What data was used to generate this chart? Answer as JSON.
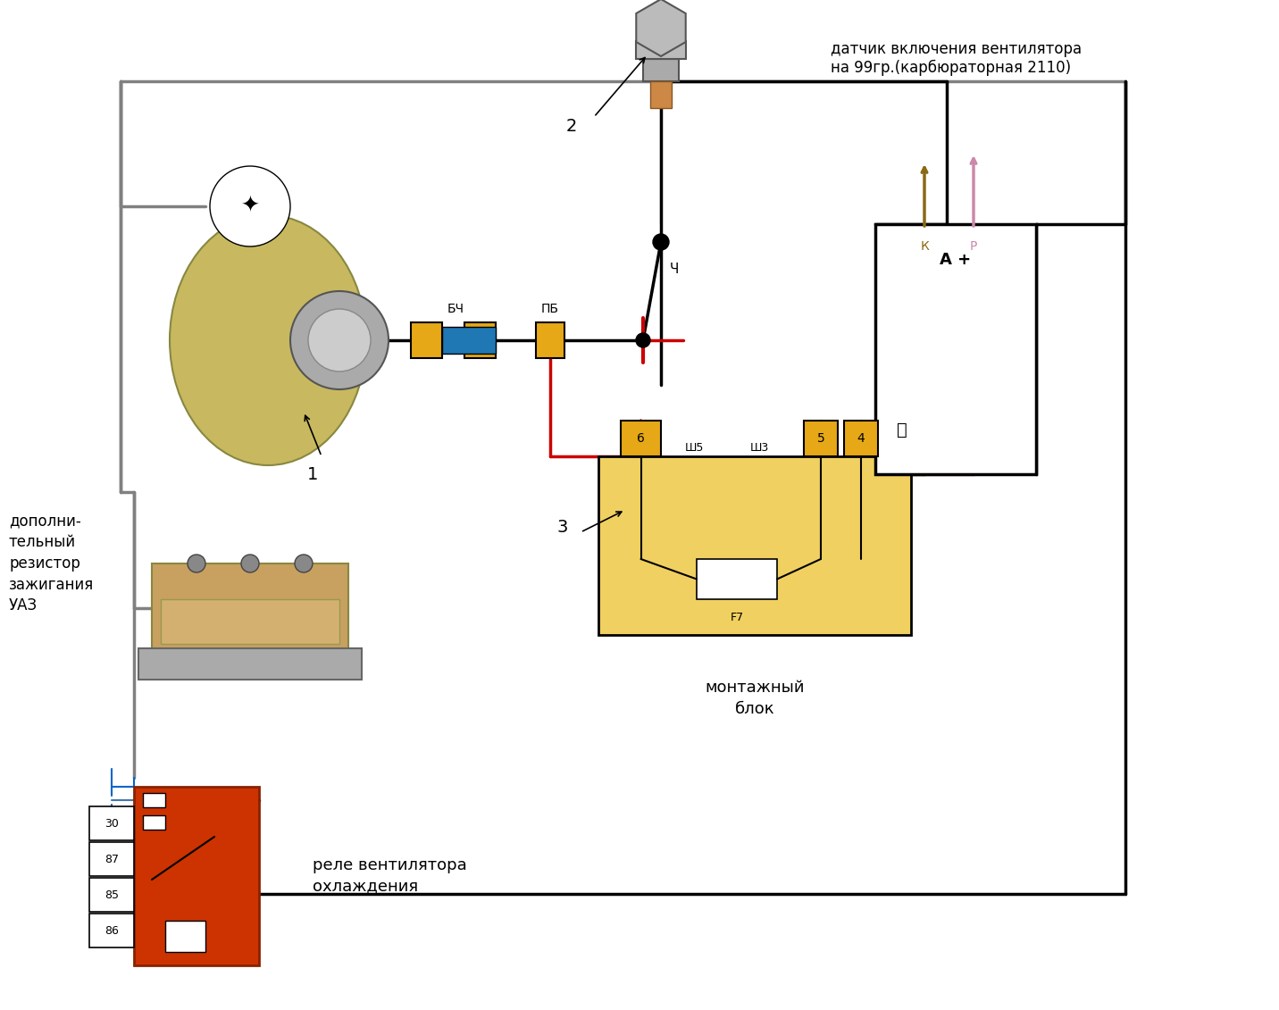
{
  "title": "",
  "bg_color": "#ffffff",
  "text_sensor": "датчик включения вентилятора\nна 99гр.(карбюраторная 2110)",
  "text_relay": "реле вентилятора\nохлаждения",
  "text_block": "монтажный\nблок",
  "text_resistor": "дополни-\nтельный\nрезистор\nзажигания\nУАЗ",
  "label1": "1",
  "label2": "2",
  "label3": "3",
  "label_BCH": "БЧ",
  "label_PB": "ПБ",
  "label_Sh5": "Ш5",
  "label_Sh3": "Ш3",
  "label_6": "6",
  "label_5": "5",
  "label_4": "4",
  "label_F7": "F7",
  "label_A": "А +",
  "label_P": "Р",
  "label_K": "К",
  "label_Ch": "Ч",
  "relay_pins": [
    "30",
    "87",
    "85",
    "86"
  ],
  "line_color_black": "#000000",
  "line_color_gray": "#808080",
  "line_color_red": "#cc0000",
  "line_color_blue": "#0066cc",
  "color_orange": "#e6a817",
  "color_yellow_block": "#f0d060",
  "color_relay_red": "#cc3300",
  "color_sensor_gray": "#999999",
  "color_brown": "#8B4513",
  "color_pink": "#ffb6c1"
}
